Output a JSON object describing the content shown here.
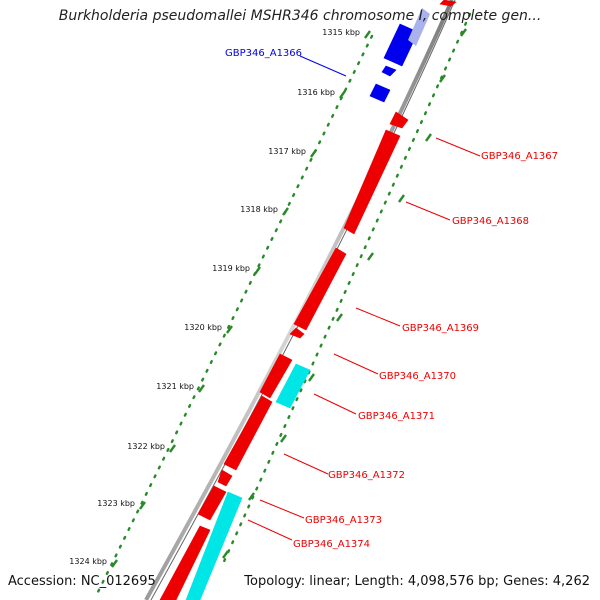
{
  "header": {
    "title": "Burkholderia pseudomallei MSHR346 chromosome I, complete gen..."
  },
  "footer": {
    "accession": "Accession: NC_012695",
    "summary": "Topology: linear; Length: 4,098,576 bp; Genes: 4,262"
  },
  "colors": {
    "forward": "#0000ee",
    "reverse": "#ee0000",
    "highlight": "#00e5e5",
    "backbone": "#808080",
    "ticks": "#2a8a2a"
  },
  "ticks": [
    "1315 kbp",
    "1316 kbp",
    "1317 kbp",
    "1318 kbp",
    "1319 kbp",
    "1320 kbp",
    "1321 kbp",
    "1322 kbp",
    "1323 kbp",
    "1324 kbp"
  ],
  "genes": [
    {
      "name": "GBP346_A1366",
      "color": "blue"
    },
    {
      "name": "GBP346_A1367",
      "color": "red"
    },
    {
      "name": "GBP346_A1368",
      "color": "red"
    },
    {
      "name": "GBP346_A1369",
      "color": "red"
    },
    {
      "name": "GBP346_A1370",
      "color": "red"
    },
    {
      "name": "GBP346_A1371",
      "color": "red"
    },
    {
      "name": "GBP346_A1372",
      "color": "red"
    },
    {
      "name": "GBP346_A1373",
      "color": "red"
    },
    {
      "name": "GBP346_A1374",
      "color": "red"
    }
  ]
}
